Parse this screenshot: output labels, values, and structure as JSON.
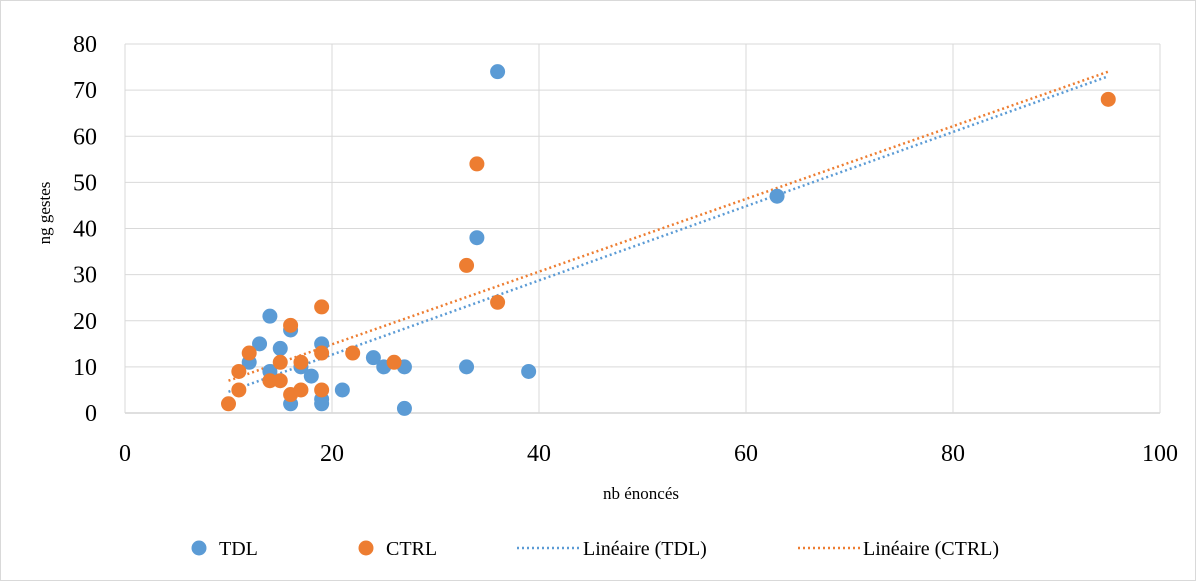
{
  "colors": {
    "tdl": "#5B9BD5",
    "ctrl": "#ED7D31",
    "grid": "#D9D9D9",
    "frame": "#D9D9D9",
    "axis": "#BFBFBF"
  },
  "chart_data": {
    "type": "scatter",
    "xlabel": "nb énoncés",
    "ylabel": "ng gestes",
    "xlim": [
      0,
      100
    ],
    "ylim": [
      0,
      80
    ],
    "xticks": [
      "0",
      "20",
      "40",
      "60",
      "80",
      "100"
    ],
    "yticks": [
      "0",
      "10",
      "20",
      "30",
      "40",
      "50",
      "60",
      "70",
      "80"
    ],
    "grid": true,
    "legend_position": "bottom",
    "series": [
      {
        "name": "TDL",
        "color": "#5B9BD5",
        "points": [
          [
            12,
            11
          ],
          [
            13,
            15
          ],
          [
            14,
            21
          ],
          [
            14,
            9
          ],
          [
            15,
            14
          ],
          [
            16,
            18
          ],
          [
            16,
            2
          ],
          [
            17,
            10
          ],
          [
            18,
            8
          ],
          [
            19,
            15
          ],
          [
            19,
            3
          ],
          [
            19,
            2
          ],
          [
            21,
            5
          ],
          [
            24,
            12
          ],
          [
            25,
            10
          ],
          [
            27,
            10
          ],
          [
            27,
            1
          ],
          [
            33,
            10
          ],
          [
            34,
            38
          ],
          [
            36,
            74
          ],
          [
            39,
            9
          ],
          [
            63,
            47
          ]
        ]
      },
      {
        "name": "CTRL",
        "color": "#ED7D31",
        "points": [
          [
            10,
            2
          ],
          [
            11,
            9
          ],
          [
            11,
            5
          ],
          [
            12,
            13
          ],
          [
            14,
            7
          ],
          [
            15,
            11
          ],
          [
            15,
            7
          ],
          [
            16,
            19
          ],
          [
            16,
            4
          ],
          [
            17,
            11
          ],
          [
            17,
            5
          ],
          [
            19,
            23
          ],
          [
            19,
            13
          ],
          [
            19,
            5
          ],
          [
            22,
            13
          ],
          [
            26,
            11
          ],
          [
            33,
            32
          ],
          [
            34,
            54
          ],
          [
            36,
            24
          ],
          [
            95,
            68
          ]
        ]
      }
    ],
    "trendlines": [
      {
        "name": "Linéaire (TDL)",
        "color": "#5B9BD5",
        "x": [
          10,
          95
        ],
        "y": [
          4.6,
          73
        ]
      },
      {
        "name": "Linéaire (CTRL)",
        "color": "#ED7D31",
        "x": [
          10,
          95
        ],
        "y": [
          7,
          74
        ]
      }
    ]
  }
}
